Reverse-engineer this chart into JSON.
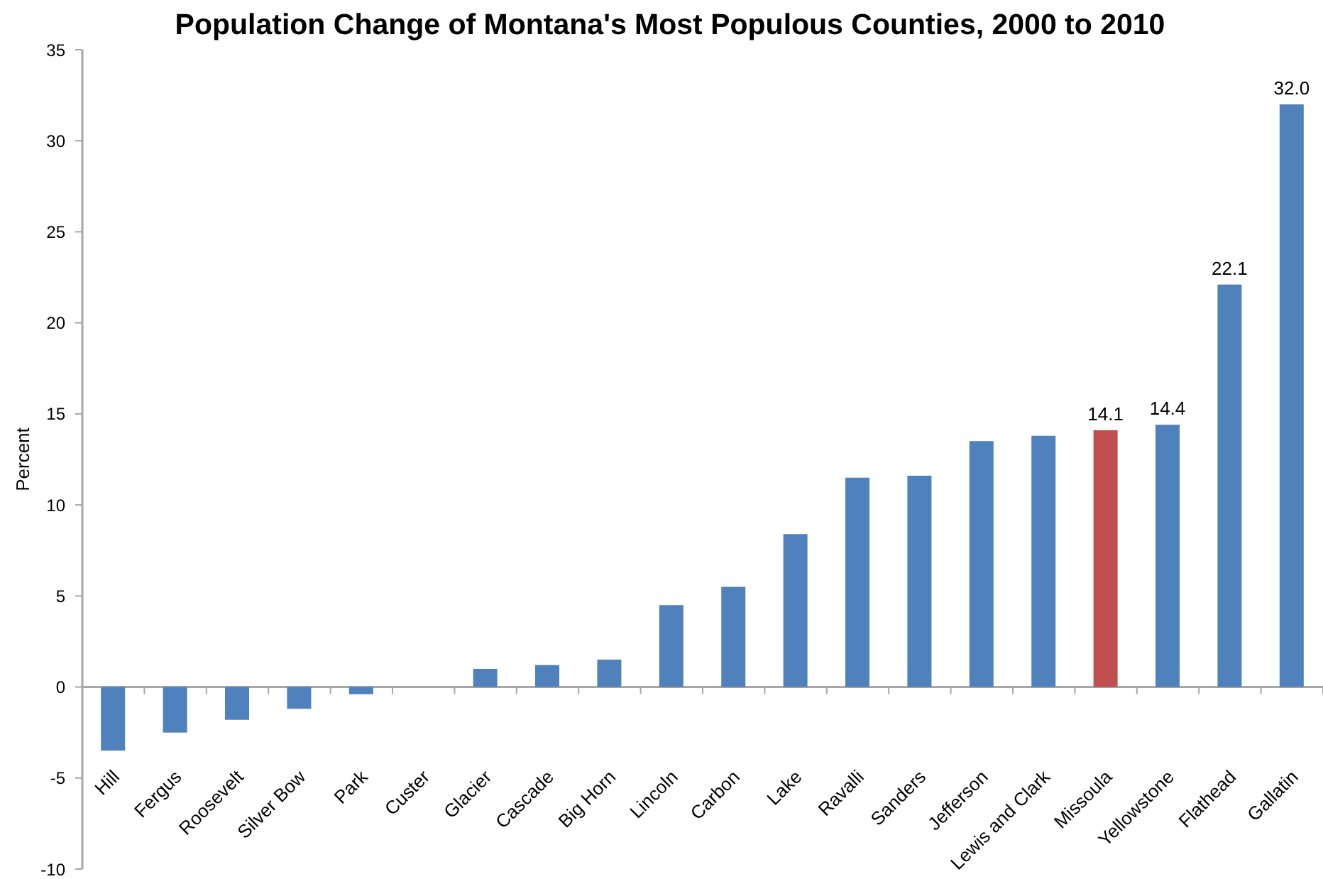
{
  "chart_data": {
    "type": "bar",
    "title": "Population Change of Montana's Most Populous Counties, 2000 to 2010",
    "ylabel": "Percent",
    "categories": [
      "Hill",
      "Fergus",
      "Roosevelt",
      "Silver Bow",
      "Park",
      "Custer",
      "Glacier",
      "Cascade",
      "Big Horn",
      "Lincoln",
      "Carbon",
      "Lake",
      "Ravalli",
      "Sanders",
      "Jefferson",
      "Lewis and Clark",
      "Missoula",
      "Yellowstone",
      "Flathead",
      "Gallatin"
    ],
    "values": [
      -3.5,
      -2.5,
      -1.8,
      -1.2,
      -0.4,
      0,
      1.0,
      1.2,
      1.5,
      4.5,
      5.5,
      8.4,
      11.5,
      11.6,
      13.5,
      13.8,
      14.1,
      14.4,
      22.1,
      32.0
    ],
    "colors": [
      "#4f81bd",
      "#4f81bd",
      "#4f81bd",
      "#4f81bd",
      "#4f81bd",
      "#4f81bd",
      "#4f81bd",
      "#4f81bd",
      "#4f81bd",
      "#4f81bd",
      "#4f81bd",
      "#4f81bd",
      "#4f81bd",
      "#4f81bd",
      "#4f81bd",
      "#4f81bd",
      "#c0504d",
      "#4f81bd",
      "#4f81bd",
      "#4f81bd"
    ],
    "value_labels": [
      null,
      null,
      null,
      null,
      null,
      null,
      null,
      null,
      null,
      null,
      null,
      null,
      null,
      null,
      null,
      null,
      "14.1",
      "14.4",
      "22.1",
      "32.0"
    ],
    "ylim": [
      -10,
      35
    ],
    "yticks": [
      -10,
      -5,
      0,
      5,
      10,
      15,
      20,
      25,
      30,
      35
    ]
  }
}
